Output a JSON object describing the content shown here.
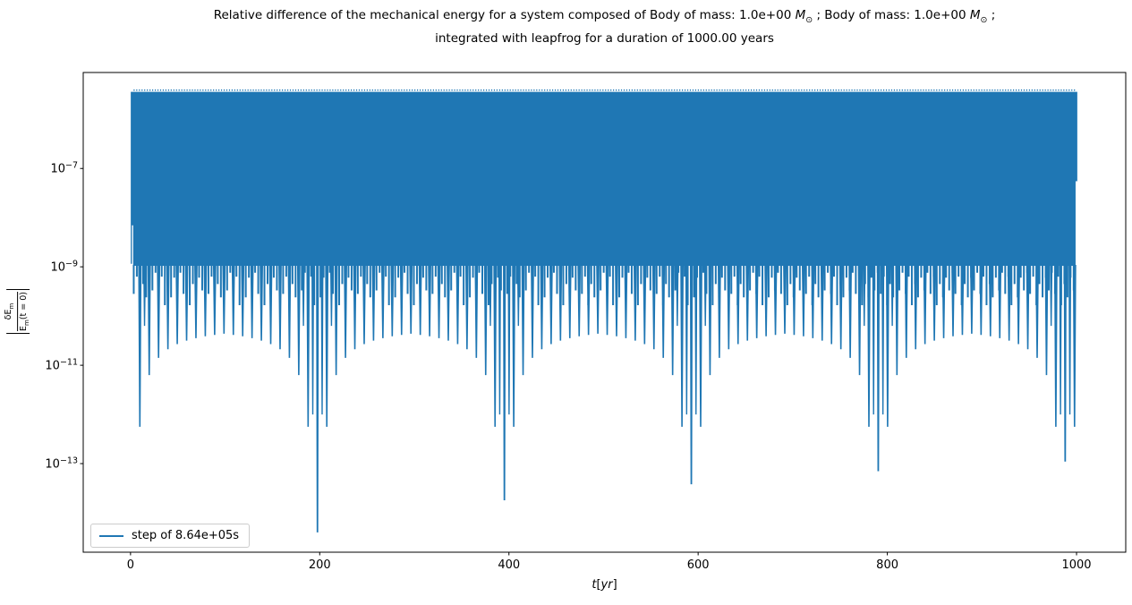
{
  "figure": {
    "title": {
      "line1_segments": [
        {
          "t": "Relative difference of the mechanical energy for a system composed of Body of mass: 1.0e+00 "
        },
        {
          "t": "M",
          "style": "mathvar"
        },
        {
          "t": "⊙",
          "style": "mathsub"
        },
        {
          "t": " ; Body of mass: 1.0e+00 "
        },
        {
          "t": "M",
          "style": "mathvar"
        },
        {
          "t": "⊙",
          "style": "mathsub"
        },
        {
          "t": " ;"
        }
      ],
      "line2": "integrated with leapfrog for a duration of 1000.00 years"
    },
    "ylabel": {
      "left_bar": "|",
      "num_main": "δE",
      "num_sub": "m",
      "den_main": "E",
      "den_sub": "m",
      "den_tail": "(t = 0)",
      "right_bar": "|"
    },
    "xlabel_segments": [
      {
        "t": "t",
        "style": "mathvar"
      },
      {
        "t": "["
      },
      {
        "t": "yr",
        "style": "mathvar"
      },
      {
        "t": "]"
      }
    ]
  },
  "legend": {
    "label": "step of 8.64e+05s"
  },
  "chart_data": {
    "type": "line",
    "title": "Relative difference of the mechanical energy for a system composed of Body of mass: 1.0e+00 M⊙ ; Body of mass: 1.0e+00 M⊙ ; integrated with leapfrog for a duration of 1000.00 years",
    "xlabel": "t[yr]",
    "ylabel": "|δE_m / E_m(t=0)|",
    "legend": [
      "step of 8.64e+05s"
    ],
    "legend_position": "lower left",
    "line_color": "#1f77b4",
    "axis_color": "#000000",
    "grid": false,
    "yscale": "log",
    "xlim": [
      -50,
      1052
    ],
    "ylim_log10": [
      -14.8,
      -5.05
    ],
    "x_ticks": [
      0,
      200,
      400,
      600,
      800,
      1000
    ],
    "y_ticks_log10": [
      -7,
      -9,
      -11,
      -13
    ],
    "series_model": {
      "description": "Dense |dE/E| oscillation of a leapfrog 2-body integration: solid band between band_bottom and band_top with downward log-spikes whose minima trace arches between very deep minima every ~197.6 yr.",
      "band_start_t": 2.8,
      "band_end_t": 999.0,
      "band_top": 3.6e-06,
      "band_bottom": 1.05e-09,
      "top_dot_spacing_yr": 2.8,
      "fringe_spacing_yr": 3.29,
      "fringe_depths_log10": [
        -9.55,
        -9.2,
        -9.78,
        -9.35,
        -9.62,
        -9.22,
        -9.48,
        -9.12
      ],
      "spike_spacing_yr": 9.88,
      "arch_period_yr": 197.6,
      "arch_apex_log10": -10.15,
      "arch_coeff": 0.21,
      "deep_spikes": [
        {
          "t": 197.6,
          "v": 4e-15
        },
        {
          "t": 395.2,
          "v": 1.8e-14
        },
        {
          "t": 592.8,
          "v": 3.8e-14
        },
        {
          "t": 790.4,
          "v": 7e-14
        },
        {
          "t": 988.0,
          "v": 1.1e-13
        }
      ],
      "left_edge": {
        "t0": 0.25,
        "t1": 2.8,
        "v_bottom": 7e-09,
        "tail_t": 0.9,
        "tail_v": 1.15e-09
      },
      "right_nub": {
        "t0": 999.0,
        "t1": 1000.8,
        "v_bottom": 5.5e-08
      }
    }
  }
}
